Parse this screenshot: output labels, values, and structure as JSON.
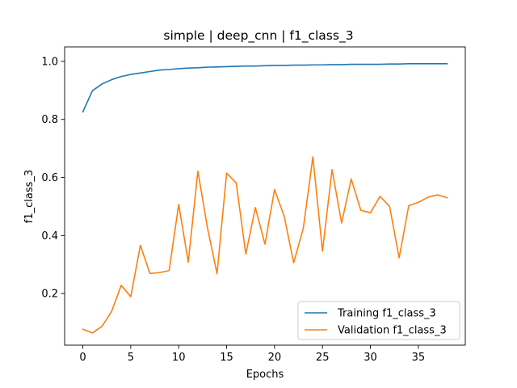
{
  "chart_data": {
    "type": "line",
    "title": "simple | deep_cnn | f1_class_3",
    "xlabel": "Epochs",
    "ylabel": "f1_class_3",
    "xlim": [
      -1.9,
      39.9
    ],
    "ylim": [
      0.022,
      1.05
    ],
    "xticks": [
      0,
      5,
      10,
      15,
      20,
      25,
      30,
      35
    ],
    "yticks": [
      0.2,
      0.4,
      0.6,
      0.8,
      1.0
    ],
    "ytick_labels": [
      "0.2",
      "0.4",
      "0.6",
      "0.8",
      "1.0"
    ],
    "grid": false,
    "legend_position": "lower right",
    "x": [
      0,
      1,
      2,
      3,
      4,
      5,
      6,
      7,
      8,
      9,
      10,
      11,
      12,
      13,
      14,
      15,
      16,
      17,
      18,
      19,
      20,
      21,
      22,
      23,
      24,
      25,
      26,
      27,
      28,
      29,
      30,
      31,
      32,
      33,
      34,
      35,
      36,
      37,
      38
    ],
    "series": [
      {
        "name": "Training f1_class_3",
        "color": "#1f77b4",
        "values": [
          0.826,
          0.899,
          0.922,
          0.937,
          0.948,
          0.955,
          0.96,
          0.965,
          0.97,
          0.972,
          0.975,
          0.977,
          0.978,
          0.98,
          0.981,
          0.982,
          0.983,
          0.984,
          0.984,
          0.985,
          0.986,
          0.986,
          0.987,
          0.987,
          0.988,
          0.988,
          0.989,
          0.989,
          0.99,
          0.99,
          0.99,
          0.99,
          0.991,
          0.991,
          0.992,
          0.992,
          0.992,
          0.992,
          0.992
        ]
      },
      {
        "name": "Validation f1_class_3",
        "color": "#ff7f0e",
        "values": [
          0.077,
          0.064,
          0.087,
          0.138,
          0.228,
          0.189,
          0.366,
          0.269,
          0.272,
          0.279,
          0.507,
          0.308,
          0.622,
          0.427,
          0.268,
          0.615,
          0.581,
          0.336,
          0.496,
          0.37,
          0.558,
          0.467,
          0.306,
          0.425,
          0.671,
          0.346,
          0.627,
          0.443,
          0.595,
          0.487,
          0.478,
          0.535,
          0.5,
          0.323,
          0.503,
          0.514,
          0.532,
          0.54,
          0.53
        ]
      }
    ]
  }
}
